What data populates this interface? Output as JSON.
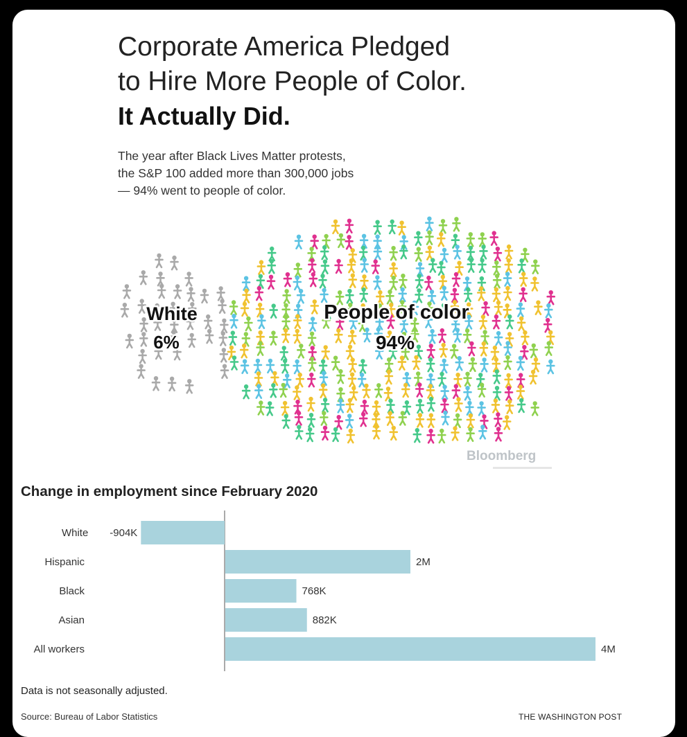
{
  "headline": {
    "line1": "Corporate America Pledged",
    "line2": "to Hire More People of Color.",
    "line3": "It Actually Did."
  },
  "subtitle": {
    "line1": "The year after Black Lives Matter protests,",
    "line2": "the S&P 100 added more than 300,000 jobs",
    "line3": "— 94% went to people of color."
  },
  "pictogram": {
    "groups": [
      {
        "name": "White",
        "percent": "6%",
        "color": "#a9a9a9"
      },
      {
        "name": "People of color",
        "percent": "94%",
        "colors": [
          "#f0c230",
          "#46c98a",
          "#e0318f",
          "#5cc3e3",
          "#8fd14f"
        ]
      }
    ],
    "credit": "Bloomberg"
  },
  "chart_data": {
    "type": "bar",
    "orientation": "horizontal",
    "title": "Change in employment since February 2020",
    "categories": [
      "White",
      "Hispanic",
      "Black",
      "Asian",
      "All workers"
    ],
    "values": [
      -904000,
      2000000,
      768000,
      882000,
      4000000
    ],
    "value_labels": [
      "-904K",
      "2M",
      "768K",
      "882K",
      "4M"
    ],
    "bar_color": "#a9d3dd",
    "xlim": [
      -1000000,
      4300000
    ]
  },
  "footer": {
    "note": "Data is not seasonally adjusted.",
    "source": "Source: Bureau of Labor Statistics",
    "publisher": "THE WASHINGTON POST"
  }
}
